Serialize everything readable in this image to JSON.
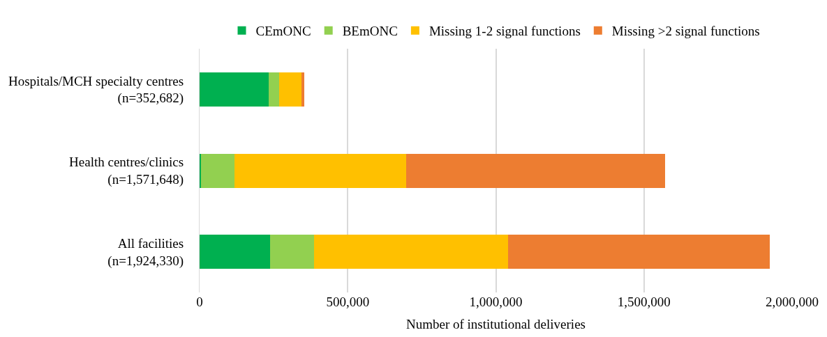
{
  "chart_data": {
    "type": "bar",
    "orientation": "horizontal",
    "stacked": true,
    "xlabel": "Number of institutional deliveries",
    "categories": [
      "Hospitals/MCH specialty centres\n(n=352,682)",
      "Health centres/clinics\n(n=1,571,648)",
      "All facilities\n(n=1,924,330)"
    ],
    "series": [
      {
        "name": "CEmONC",
        "color": "#00b050",
        "values": [
          233000,
          5000,
          238000
        ]
      },
      {
        "name": "BEmONC",
        "color": "#92d050",
        "values": [
          36000,
          112000,
          148000
        ]
      },
      {
        "name": "Missing 1-2 signal functions",
        "color": "#ffc000",
        "values": [
          75000,
          580000,
          655000
        ]
      },
      {
        "name": "Missing >2 signal functions",
        "color": "#ed7d31",
        "values": [
          9000,
          875000,
          883000
        ]
      }
    ],
    "xlim": [
      0,
      2000000
    ],
    "xticks": [
      {
        "value": 0,
        "label": "0"
      },
      {
        "value": 500000,
        "label": "500,000"
      },
      {
        "value": 1000000,
        "label": "1,000,000"
      },
      {
        "value": 1500000,
        "label": "1,500,000"
      },
      {
        "value": 2000000,
        "label": "2,000,000"
      }
    ],
    "grid": "x",
    "legend": "top"
  }
}
